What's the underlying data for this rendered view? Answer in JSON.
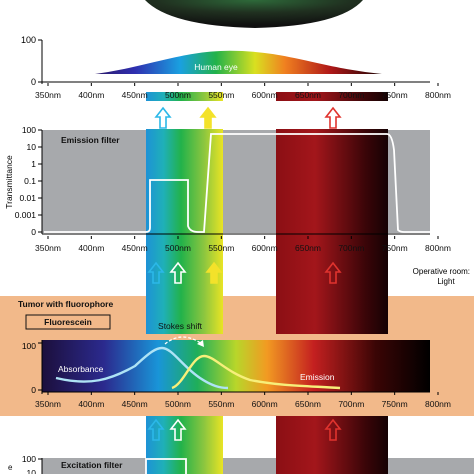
{
  "wavelength_ticks": [
    "350nm",
    "400nm",
    "450nm",
    "500nm",
    "550nm",
    "600nm",
    "650nm",
    "700nm",
    "750nm",
    "800nm"
  ],
  "top_panel": {
    "y_ticks": [
      "100",
      "0"
    ],
    "curve_label": "Human eye"
  },
  "emission_panel": {
    "filter_label": "Emission filter",
    "y_axis_label": "Transmittance",
    "y_ticks": [
      "100",
      "10",
      "1",
      "0.1",
      "0.01",
      "0.001",
      "0"
    ]
  },
  "operative_room": {
    "line1": "Operative room:",
    "line2": "Light"
  },
  "tumor_panel": {
    "title": "Tumor with fluorophore",
    "fluorophore": "Fluorescein",
    "stokes_label": "Stokes shift",
    "absorbance_label": "Absorbance",
    "emission_label": "Emission",
    "y_ticks": [
      "100",
      "0"
    ]
  },
  "excitation_panel": {
    "filter_label": "Excitation filter",
    "y_ticks": [
      "100",
      "10"
    ]
  },
  "colors": {
    "tumor_band": "#f2b98a",
    "filter_gray": "#a7a9ac",
    "cyan_arrow": "#2bb8e8",
    "green_arrow": "#4cc24c",
    "yellow_arrow": "#f3e22a",
    "red_arrow": "#e0332e",
    "curve_blue": "#aee3f5",
    "curve_yellow": "#f7ef7a"
  }
}
